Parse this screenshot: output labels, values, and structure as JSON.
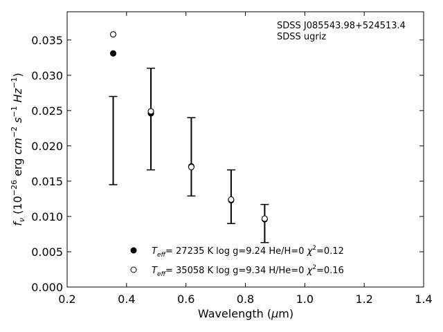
{
  "chart_data": {
    "type": "scatter",
    "annotation": [
      "SDSS J085543.98+524513.4",
      "SDSS ugriz"
    ],
    "xlabel": {
      "text": "Wavelength (",
      "mu": "μ",
      "rest": "m)"
    },
    "ylabel": {
      "prefix": "f",
      "sub": "ν",
      "open": " (10",
      "exp1": "−26",
      "mid": " erg ",
      "cm": "cm",
      "exp2": "−2",
      "s": " s",
      "exp3": "−1",
      "hz": " Hz",
      "exp4": "−1",
      "close": ")"
    },
    "xlim": [
      0.2,
      1.4
    ],
    "ylim": [
      0.0,
      0.039
    ],
    "xticks": [
      0.2,
      0.4,
      0.6,
      0.8,
      1.0,
      1.2,
      1.4
    ],
    "xtick_labels": [
      "0.2",
      "0.4",
      "0.6",
      "0.8",
      "1.0",
      "1.2",
      "1.4"
    ],
    "yticks": [
      0.0,
      0.005,
      0.01,
      0.015,
      0.02,
      0.025,
      0.03,
      0.035
    ],
    "ytick_labels": [
      "0.000",
      "0.005",
      "0.010",
      "0.015",
      "0.020",
      "0.025",
      "0.030",
      "0.035"
    ],
    "grid": false,
    "legend_position": "bottom-center",
    "observed": {
      "x": [
        0.355,
        0.482,
        0.618,
        0.752,
        0.865
      ],
      "y": [
        0.0208,
        0.0238,
        0.0184,
        0.0128,
        0.009
      ],
      "yerr_low": [
        0.0145,
        0.0166,
        0.0129,
        0.009,
        0.0063
      ],
      "yerr_high": [
        0.027,
        0.031,
        0.024,
        0.0166,
        0.0117
      ]
    },
    "series": [
      {
        "name": "27235 K  log g=9.24  He/H=0  χ²=0.12",
        "legend": {
          "t": "T",
          "tsub": "eff",
          "a": "= 27235 K  log g=9.24  He/H=0  ",
          "chi": "χ",
          "sup": "2",
          "b": "=0.12"
        },
        "marker": "filled-circle",
        "color": "#000000",
        "x": [
          0.355,
          0.482,
          0.618,
          0.752,
          0.865
        ],
        "y": [
          0.0331,
          0.0246,
          0.0171,
          0.0123,
          0.0096
        ]
      },
      {
        "name": "35058 K  log g=9.34  H/He=0  χ²=0.16",
        "legend": {
          "t": "T",
          "tsub": "eff",
          "a": "= 35058 K  log g=9.34  H/He=0  ",
          "chi": "χ",
          "sup": "2",
          "b": "=0.16"
        },
        "marker": "open-circle",
        "color": "#000000",
        "x": [
          0.355,
          0.482,
          0.618,
          0.752,
          0.865
        ],
        "y": [
          0.0358,
          0.0249,
          0.017,
          0.0124,
          0.0097
        ]
      }
    ]
  }
}
